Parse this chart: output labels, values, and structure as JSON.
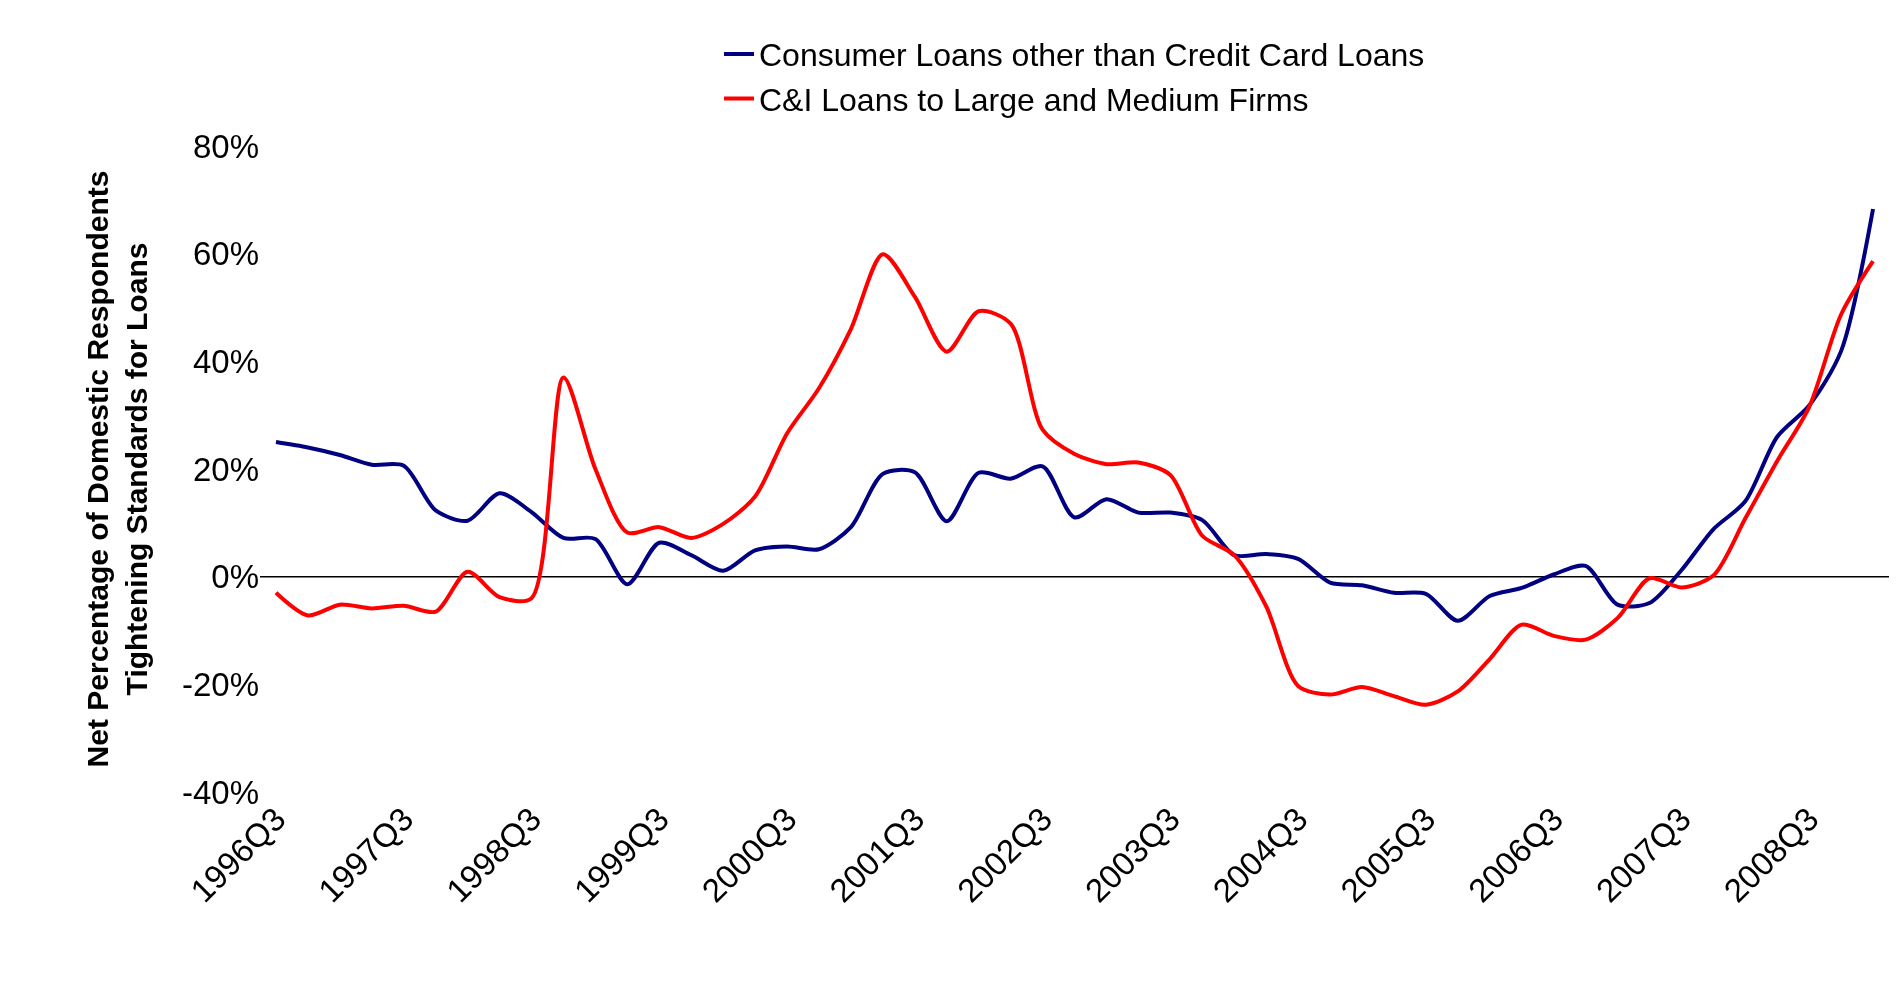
{
  "chart_data": {
    "type": "line",
    "ylabel": "Net Percentage of Domestic Respondents\nTightening Standards for Loans",
    "categories": [
      "1996Q3",
      null,
      null,
      null,
      "1997Q3",
      null,
      null,
      null,
      "1998Q3",
      null,
      null,
      null,
      "1999Q3",
      null,
      null,
      null,
      "2000Q3",
      null,
      null,
      null,
      "2001Q3",
      null,
      null,
      null,
      "2002Q3",
      null,
      null,
      null,
      "2003Q3",
      null,
      null,
      null,
      "2004Q3",
      null,
      null,
      null,
      "2005Q3",
      null,
      null,
      null,
      "2006Q3",
      null,
      null,
      null,
      "2007Q3",
      null,
      null,
      null,
      "2008Q3",
      null,
      null
    ],
    "ylim": [
      -40,
      80
    ],
    "yticks": [
      {
        "value": -40,
        "label": "-40%"
      },
      {
        "value": -20,
        "label": "-20%"
      },
      {
        "value": 0,
        "label": "0%"
      },
      {
        "value": 20,
        "label": "20%"
      },
      {
        "value": 40,
        "label": "40%"
      },
      {
        "value": 60,
        "label": "60%"
      },
      {
        "value": 80,
        "label": "80%"
      }
    ],
    "grid": false,
    "legend": "top",
    "marker": "none",
    "line_style": "solid",
    "ref_lines": [
      {
        "axis": "y",
        "value": 0,
        "color": "#000000"
      }
    ],
    "series": [
      {
        "name": "Consumer Loans other than Credit Card Loans",
        "color": "#000080",
        "values": [
          25,
          24,
          22.6,
          20.8,
          20.6,
          12.3,
          10.4,
          15.5,
          12,
          7.2,
          7,
          -1.4,
          6.3,
          4,
          1.1,
          4.9,
          5.6,
          5.1,
          9.2,
          19.1,
          19.4,
          10.3,
          19.3,
          18.2,
          20.5,
          11,
          14.4,
          11.9,
          11.9,
          10.5,
          4,
          4.2,
          3.3,
          -1.1,
          -1.6,
          -3,
          -3.2,
          -8.2,
          -3.6,
          -2.1,
          0.4,
          2,
          -5.2,
          -4.9,
          1.2,
          8.8,
          14,
          26,
          31.8,
          41.9,
          68.3
        ]
      },
      {
        "name": "C&I Loans to Large and Medium Firms",
        "color": "#ff0000",
        "values": [
          -3,
          -7.2,
          -5.2,
          -5.9,
          -5.4,
          -6.5,
          0.9,
          -3.8,
          -4,
          37,
          20,
          8.2,
          9.2,
          7.2,
          9.8,
          14.9,
          26.6,
          35,
          46,
          59.9,
          52,
          41.8,
          49.3,
          47,
          27.3,
          22.8,
          20.9,
          21.2,
          18.9,
          7.6,
          4,
          -5.5,
          -20.3,
          -21.9,
          -20.5,
          -22.2,
          -23.8,
          -21.3,
          -15.3,
          -8.9,
          -11,
          -11.7,
          -7.7,
          -0.3,
          -2,
          0.2,
          10.8,
          21.5,
          31.5,
          48.7,
          58.6
        ]
      }
    ]
  }
}
